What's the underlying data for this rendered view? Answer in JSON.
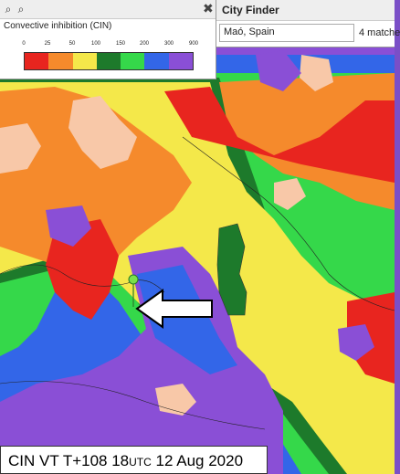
{
  "legend": {
    "title": "Convective inhibition (CIN)",
    "ticks": [
      "0",
      "25",
      "50",
      "100",
      "150",
      "200",
      "300",
      "900"
    ],
    "colors": [
      "#e8251f",
      "#f58a2c",
      "#f4e84a",
      "#1d7a2b",
      "#35d84a",
      "#3366e8",
      "#8a4fd6"
    ]
  },
  "toolbar": {
    "zoom_in_icon": "zoom-in-icon",
    "zoom_out_icon": "zoom-out-icon",
    "close_icon": "close-icon"
  },
  "city_finder": {
    "title": "City Finder",
    "value": "Maó, Spain",
    "matches": "4 matche"
  },
  "caption": {
    "prefix": "CIN VT T+108 18",
    "utc": "UTC",
    "suffix": " 12 Aug 2020"
  },
  "map_colors": {
    "red": "#e8251f",
    "orange": "#f58a2c",
    "yellow": "#f4e84a",
    "darkgreen": "#1d7a2b",
    "green": "#35d84a",
    "blue": "#3366e8",
    "purple": "#8a4fd6",
    "pink": "#f8c8a8"
  }
}
